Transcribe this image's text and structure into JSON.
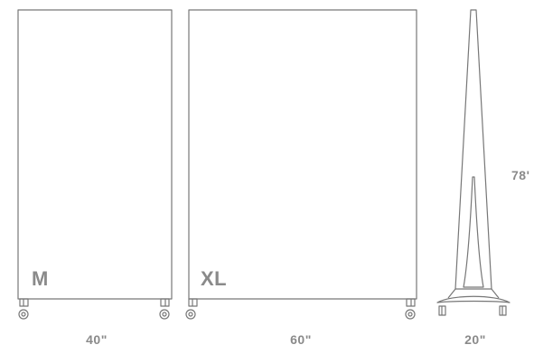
{
  "panels": [
    {
      "size_label": "M",
      "width_label": "40\""
    },
    {
      "size_label": "XL",
      "width_label": "60\""
    }
  ],
  "side_view": {
    "depth_label": "20\"",
    "height_label": "78'"
  },
  "colors": {
    "line": "#777777",
    "label": "#8a8a8a",
    "background": "#ffffff"
  }
}
